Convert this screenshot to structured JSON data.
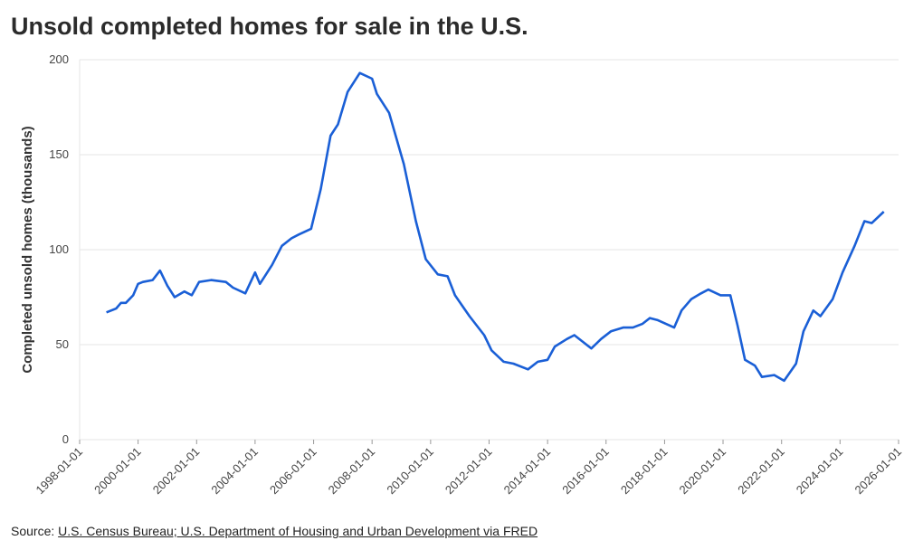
{
  "chart_data": {
    "type": "line",
    "title": "Unsold completed homes for sale in the U.S.",
    "y_label": "Completed unsold homes (thousands)",
    "source_label": "Source:",
    "source": "U.S. Census Bureau; U.S. Department of Housing and Urban Development via FRED",
    "color": "#1a5fd6",
    "grid": true,
    "xlim": [
      "1998-01-01",
      "2026-01-01"
    ],
    "xticks": [
      "1998-01-01",
      "2000-01-01",
      "2002-01-01",
      "2004-01-01",
      "2006-01-01",
      "2008-01-01",
      "2010-01-01",
      "2012-01-01",
      "2014-01-01",
      "2016-01-01",
      "2018-01-01",
      "2020-01-01",
      "2022-01-01",
      "2024-01-01",
      "2026-01-01"
    ],
    "ylim": [
      0,
      200
    ],
    "yticks": [
      0,
      50,
      100,
      150,
      200
    ],
    "x": [
      "1998-12-01",
      "1999-04-01",
      "1999-06-01",
      "1999-08-01",
      "1999-11-01",
      "2000-01-01",
      "2000-03-01",
      "2000-07-01",
      "2000-10-01",
      "2001-01-01",
      "2001-04-01",
      "2001-08-01",
      "2001-11-01",
      "2002-02-01",
      "2002-07-01",
      "2003-01-01",
      "2003-04-01",
      "2003-09-01",
      "2004-01-01",
      "2004-03-01",
      "2004-05-01",
      "2004-08-01",
      "2004-12-01",
      "2005-04-01",
      "2005-07-01",
      "2005-12-01",
      "2006-04-01",
      "2006-08-01",
      "2006-11-01",
      "2007-03-01",
      "2007-08-01",
      "2008-01-01",
      "2008-03-01",
      "2008-08-01",
      "2009-02-01",
      "2009-07-01",
      "2009-11-01",
      "2010-04-01",
      "2010-08-01",
      "2010-11-01",
      "2011-05-01",
      "2011-11-01",
      "2012-02-01",
      "2012-07-01",
      "2012-11-01",
      "2013-05-01",
      "2013-09-01",
      "2014-01-01",
      "2014-04-01",
      "2014-09-01",
      "2014-12-01",
      "2015-04-01",
      "2015-07-01",
      "2015-11-01",
      "2016-03-01",
      "2016-08-01",
      "2016-12-01",
      "2017-04-01",
      "2017-07-01",
      "2017-10-01",
      "2018-05-01",
      "2018-08-01",
      "2018-12-01",
      "2019-04-01",
      "2019-07-01",
      "2019-12-01",
      "2020-04-01",
      "2020-07-01",
      "2020-10-01",
      "2021-02-01",
      "2021-05-01",
      "2021-10-01",
      "2022-02-01",
      "2022-07-01",
      "2022-10-01",
      "2023-02-01",
      "2023-05-01",
      "2023-10-01",
      "2024-02-01",
      "2024-07-01",
      "2024-11-01",
      "2025-02-01",
      "2025-07-01"
    ],
    "values": [
      67,
      69,
      72,
      72,
      76,
      82,
      83,
      84,
      89,
      81,
      75,
      78,
      76,
      83,
      84,
      83,
      80,
      77,
      88,
      82,
      86,
      92,
      102,
      106,
      108,
      111,
      132,
      160,
      166,
      183,
      193,
      190,
      182,
      172,
      145,
      115,
      95,
      87,
      86,
      76,
      65,
      55,
      47,
      41,
      40,
      37,
      41,
      42,
      49,
      53,
      55,
      51,
      48,
      53,
      57,
      59,
      59,
      61,
      64,
      63,
      59,
      68,
      74,
      77,
      79,
      76,
      76,
      60,
      42,
      39,
      33,
      34,
      31,
      40,
      57,
      68,
      65,
      74,
      88,
      102,
      115,
      114,
      120
    ]
  }
}
